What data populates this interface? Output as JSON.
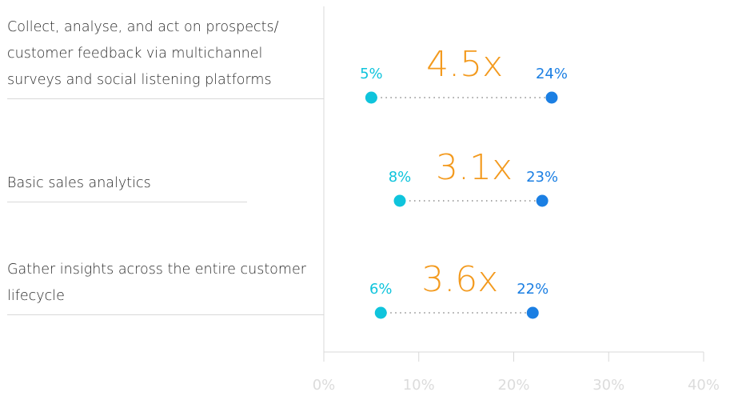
{
  "chart_data": {
    "type": "dumbbell",
    "categories": [
      "Collect, analyse, and act on prospects/ customer feedback via multichannel surveys and social listening platforms",
      "Basic sales analytics",
      "Gather insights across the entire customer lifecycle"
    ],
    "series": [
      {
        "color": "#0fc4dc",
        "values": [
          5,
          8,
          6
        ],
        "value_labels": [
          "5%",
          "8%",
          "6%"
        ]
      },
      {
        "color": "#1b7fe3",
        "values": [
          24,
          23,
          22
        ],
        "value_labels": [
          "24%",
          "23%",
          "22%"
        ]
      }
    ],
    "annotations": [
      "4.5x",
      "3.1x",
      "3.6x"
    ],
    "annotation_color": "#f39a1e",
    "xlim": [
      0,
      40
    ],
    "xticks": [
      {
        "value": 0,
        "label": "0%"
      },
      {
        "value": 10,
        "label": "10%"
      },
      {
        "value": 20,
        "label": "20%"
      },
      {
        "value": 30,
        "label": "30%"
      },
      {
        "value": 40,
        "label": "40%"
      }
    ]
  }
}
